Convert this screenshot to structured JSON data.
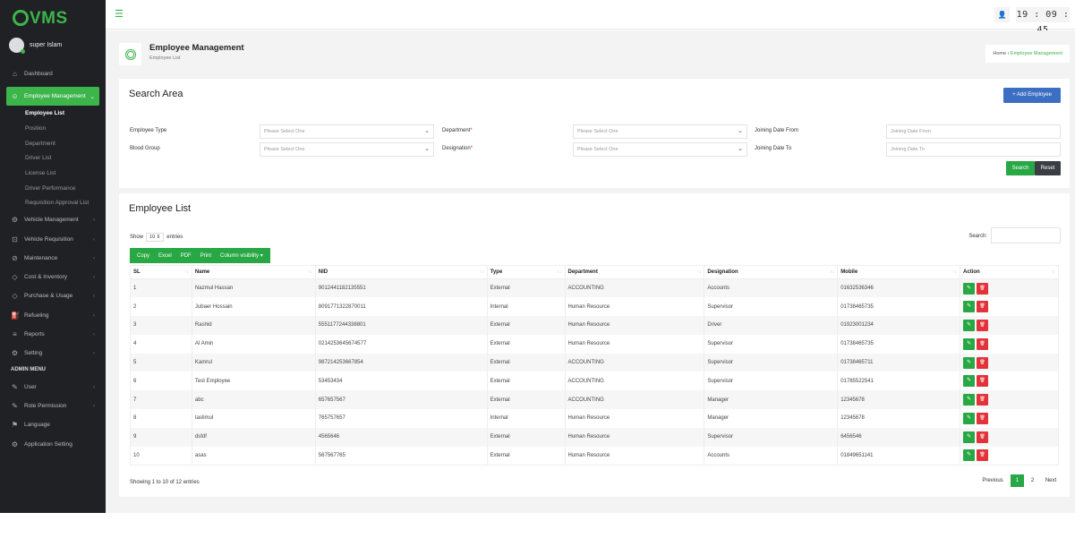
{
  "app": {
    "logo": "VMS",
    "user_name": "super Islam",
    "clock": "19 : 09 : 45"
  },
  "sidebar": {
    "items": [
      {
        "label": "Dashboard",
        "icon": "home-icon"
      },
      {
        "label": "Employee Management",
        "icon": "employee-icon",
        "active": true,
        "children": [
          {
            "label": "Employee List",
            "current": true
          },
          {
            "label": "Position"
          },
          {
            "label": "Department"
          },
          {
            "label": "Driver List"
          },
          {
            "label": "License List"
          },
          {
            "label": "Driver Performance"
          },
          {
            "label": "Requisition Approval List"
          }
        ]
      },
      {
        "label": "Vehicle Management",
        "icon": "vehicle-icon"
      },
      {
        "label": "Vehicle Requisition",
        "icon": "requisition-icon"
      },
      {
        "label": "Maintenance",
        "icon": "wrench-icon"
      },
      {
        "label": "Cost & Inventory",
        "icon": "tag-icon"
      },
      {
        "label": "Purchase & Usage",
        "icon": "tag-icon"
      },
      {
        "label": "Refueling",
        "icon": "fuel-icon"
      },
      {
        "label": "Reports",
        "icon": "report-icon"
      },
      {
        "label": "Setting",
        "icon": "gear-icon"
      }
    ],
    "admin_header": "ADMIN MENU",
    "admin_items": [
      {
        "label": "User",
        "icon": "user-edit-icon"
      },
      {
        "label": "Role Permission",
        "icon": "role-icon"
      },
      {
        "label": "Language",
        "icon": "flag-icon"
      },
      {
        "label": "Application Setting",
        "icon": "gear-icon"
      }
    ]
  },
  "page_header": {
    "title": "Employee Management",
    "subtitle": "Employee List",
    "breadcrumb": [
      "Home",
      "Employee Management"
    ]
  },
  "search": {
    "title": "Search Area",
    "add_button": "+ Add Employee",
    "fields": {
      "employee_type": {
        "label": "Employee Type",
        "placeholder": "Please Select One"
      },
      "department": {
        "label": "Department",
        "placeholder": "Please Select One"
      },
      "joining_from": {
        "label": "Joining Date From",
        "placeholder": "Joining Date From"
      },
      "blood_group": {
        "label": "Blood Group",
        "placeholder": "Please Select One"
      },
      "designation": {
        "label": "Designation",
        "placeholder": "Please Select One"
      },
      "joining_to": {
        "label": "Joining Date To",
        "placeholder": "Joining Date To"
      }
    },
    "required_mark": "*",
    "search_button": "Search",
    "reset_button": "Reset"
  },
  "list": {
    "title": "Employee List",
    "show": "Show",
    "entries_value": "10",
    "entries": "entries",
    "search_label": "Search:",
    "export_buttons": [
      "Copy",
      "Excel",
      "PDF",
      "Print",
      "Column visibility ▾"
    ],
    "columns": [
      "SL",
      "Name",
      "NID",
      "Type",
      "Department",
      "Designation",
      "Mobile",
      "Action"
    ],
    "rows": [
      [
        "1",
        "Nazmul Hassan",
        "9012441182135551",
        "External",
        "ACCOUNTING",
        "Accounts",
        "01632536346"
      ],
      [
        "2",
        "Jubaer Hossain",
        "8091771322870011",
        "Internal",
        "Human Resource",
        "Supervisor",
        "01738465735"
      ],
      [
        "3",
        "Rashid",
        "5551177244338801",
        "External",
        "Human Resource",
        "Driver",
        "01923001234"
      ],
      [
        "4",
        "Al Amin",
        "0214253645674577",
        "External",
        "Human Resource",
        "Supervisor",
        "01738465735"
      ],
      [
        "5",
        "Kamrul",
        "987214253667854",
        "External",
        "ACCOUNTING",
        "Supervisor",
        "01738465711"
      ],
      [
        "6",
        "Test Employee",
        "53453434",
        "External",
        "ACCOUNTING",
        "Supervisor",
        "01785522541"
      ],
      [
        "7",
        "abc",
        "657657567",
        "External",
        "ACCOUNTING",
        "Manager",
        "12345678"
      ],
      [
        "8",
        "taslimul",
        "765757657",
        "Internal",
        "Human Resource",
        "Manager",
        "12345678"
      ],
      [
        "9",
        "dsfdf",
        "4565646",
        "External",
        "Human Resource",
        "Supervisor",
        "6456546"
      ],
      [
        "10",
        "asas",
        "567567765",
        "External",
        "Human Resource",
        "Accounts",
        "01849651141"
      ]
    ],
    "info": "Showing 1 to 10 of 12 entries",
    "pagination": {
      "previous": "Previous",
      "pages": [
        "1",
        "2"
      ],
      "current": "1",
      "next": "Next"
    }
  },
  "colors": {
    "accent": "#3cb54a",
    "sidebar": "#1f2125",
    "primary": "#3c6fc4",
    "danger": "#e2323a",
    "success": "#28a745"
  }
}
